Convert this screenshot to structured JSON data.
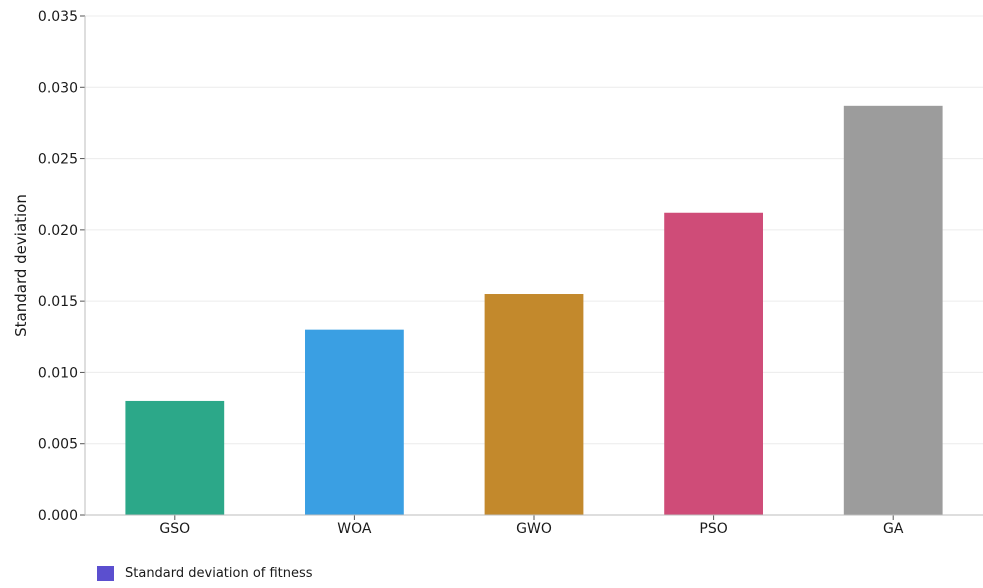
{
  "chart_data": {
    "type": "bar",
    "categories": [
      "GSO",
      "WOA",
      "GWO",
      "PSO",
      "GA"
    ],
    "values": [
      0.008,
      0.013,
      0.0155,
      0.0212,
      0.0287
    ],
    "bar_colors": [
      "#2ca889",
      "#3a9fe3",
      "#c3892c",
      "#cf4c78",
      "#9c9c9c"
    ],
    "ylabel": "Standard deviation",
    "ylim": [
      0,
      0.035
    ],
    "yticks": [
      "0.000",
      "0.005",
      "0.010",
      "0.015",
      "0.020",
      "0.025",
      "0.030",
      "0.035"
    ],
    "grid": true,
    "legend": {
      "position": "bottom-left",
      "entries": [
        {
          "label": "Standard deviation of fitness",
          "color": "#5b4fcf"
        }
      ]
    }
  }
}
